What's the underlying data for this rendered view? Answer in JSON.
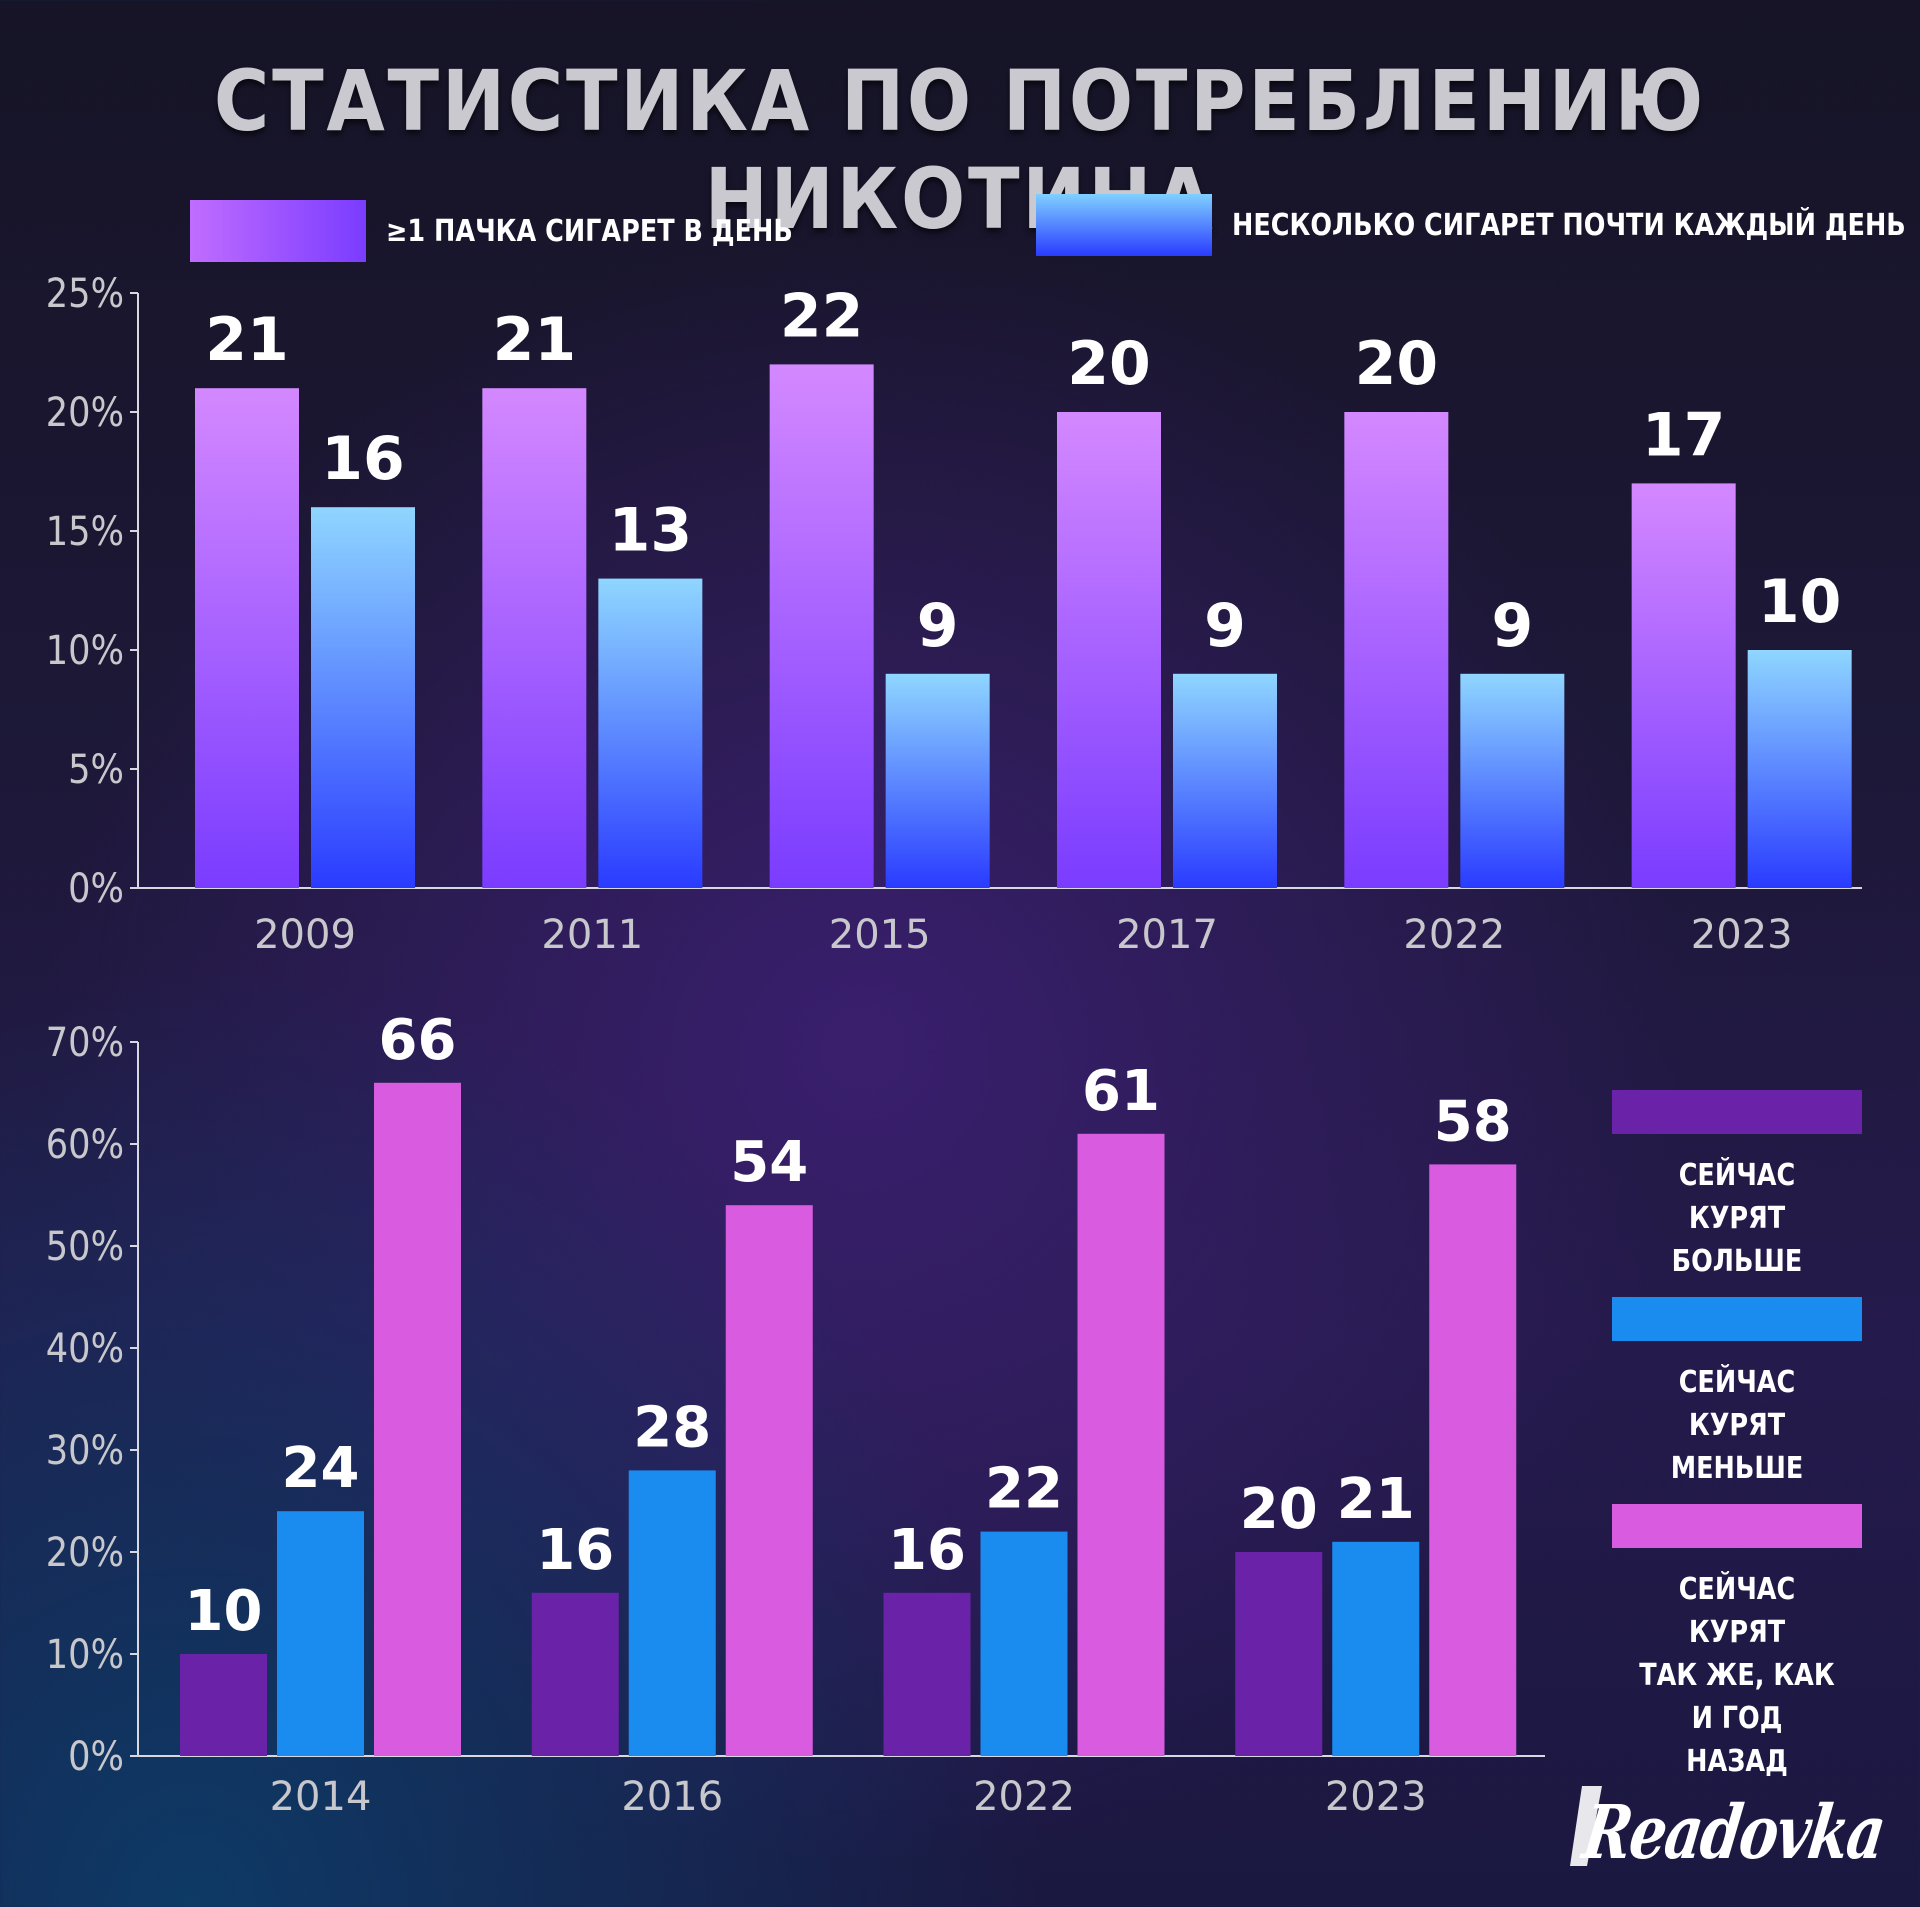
{
  "title": "СТАТИСТИКА ПО ПОТРЕБЛЕНИЮ НИКОТИНА",
  "brand": "Readovka",
  "colors": {
    "pack_top": "#d488ff",
    "pack_bottom": "#7a3cff",
    "several_top": "#8fd6ff",
    "several_bottom": "#2a3bff",
    "more": "#6a22a8",
    "less": "#1a8cf0",
    "same": "#d95ce0",
    "axis": "#d8d8e0",
    "tick_text": "#c8c8cc",
    "value_text": "#ffffff"
  },
  "chart_data": [
    {
      "type": "bar",
      "categories": [
        "2009",
        "2011",
        "2015",
        "2017",
        "2022",
        "2023"
      ],
      "series": [
        {
          "name": "≥1 ПАЧКА СИГАРЕТ В ДЕНЬ",
          "values": [
            21,
            21,
            22,
            20,
            20,
            17
          ]
        },
        {
          "name": "НЕСКОЛЬКО СИГАРЕТ ПОЧТИ КАЖДЫЙ ДЕНЬ",
          "values": [
            16,
            13,
            9,
            9,
            9,
            10
          ]
        }
      ],
      "yticks": [
        "0%",
        "5%",
        "10%",
        "15%",
        "20%",
        "25%"
      ],
      "ylim": [
        0,
        25
      ],
      "legend_position": "top"
    },
    {
      "type": "bar",
      "categories": [
        "2014",
        "2016",
        "2022",
        "2023"
      ],
      "series": [
        {
          "name": "СЕЙЧАС КУРЯТ БОЛЬШЕ",
          "values": [
            10,
            16,
            16,
            20
          ]
        },
        {
          "name": "СЕЙЧАС КУРЯТ МЕНЬШЕ",
          "values": [
            24,
            28,
            22,
            21
          ]
        },
        {
          "name": "СЕЙЧАС КУРЯТ ТАК ЖЕ, КАК И ГОД НАЗАД",
          "values": [
            66,
            54,
            61,
            58
          ]
        }
      ],
      "yticks": [
        "0%",
        "10%",
        "20%",
        "30%",
        "40%",
        "50%",
        "60%",
        "70%"
      ],
      "ylim": [
        0,
        70
      ],
      "legend_position": "right"
    }
  ],
  "legend1": [
    {
      "label": "≥1 ПАЧКА СИГАРЕТ В ДЕНЬ"
    },
    {
      "label": "НЕСКОЛЬКО СИГАРЕТ ПОЧТИ КАЖДЫЙ ДЕНЬ"
    }
  ],
  "legend2": [
    {
      "label": "СЕЙЧАС КУРЯТ\nБОЛЬШЕ"
    },
    {
      "label": "СЕЙЧАС КУРЯТ\nМЕНЬШЕ"
    },
    {
      "label": "СЕЙЧАС КУРЯТ\nТАК ЖЕ, КАК И ГОД\nНАЗАД"
    }
  ]
}
